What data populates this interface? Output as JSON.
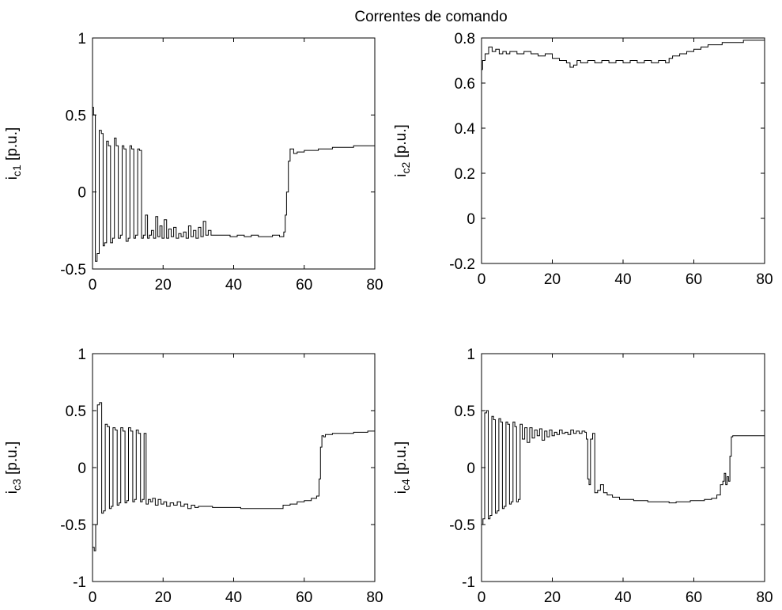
{
  "figure": {
    "title": "Correntes de comando"
  },
  "chart_data": [
    {
      "type": "line",
      "id": "ic1",
      "title": "Correntes de comando",
      "ylabel": {
        "base": "i",
        "sub": "c1",
        "unit": " [p.u.]"
      },
      "xlim": [
        0,
        80
      ],
      "ylim": [
        -0.5,
        1
      ],
      "xticks": [
        0,
        20,
        40,
        60,
        80
      ],
      "yticks": [
        -0.5,
        0,
        0.5,
        1
      ],
      "ytick_labels": [
        "-0.5",
        "0",
        "0.5",
        "1"
      ],
      "series": [
        {
          "color": "#000000",
          "x": [
            0,
            0.3,
            0.8,
            1.3,
            1.9,
            2.5,
            3.0,
            3.4,
            4.0,
            4.5,
            5.1,
            5.7,
            6.2,
            6.7,
            7.3,
            7.9,
            8.4,
            8.9,
            9.5,
            10.1,
            10.6,
            11.1,
            11.7,
            12.2,
            12.8,
            13.3,
            13.9,
            14.4,
            15.0,
            15.6,
            16.1,
            16.7,
            17.3,
            17.9,
            18.5,
            19.1,
            19.7,
            20.3,
            21.0,
            21.6,
            22.3,
            23.0,
            23.7,
            24.4,
            25.1,
            25.8,
            26.5,
            27.2,
            27.9,
            28.6,
            29.3,
            30.0,
            30.7,
            31.4,
            32.1,
            32.8,
            33.6,
            35,
            37,
            39,
            41,
            43,
            45,
            47,
            49,
            51,
            53,
            54.2,
            54.6,
            55.0,
            55.5,
            56,
            57,
            58,
            60,
            62,
            64,
            66,
            68,
            70,
            72,
            74,
            76,
            78,
            79.5,
            80
          ],
          "y": [
            0.55,
            0.5,
            -0.45,
            -0.4,
            0.4,
            0.38,
            -0.35,
            -0.33,
            0.33,
            0.3,
            -0.33,
            -0.3,
            0.35,
            0.3,
            -0.3,
            -0.28,
            0.3,
            0.28,
            -0.32,
            -0.3,
            0.3,
            0.28,
            -0.3,
            -0.28,
            0.28,
            0.27,
            -0.3,
            -0.28,
            -0.15,
            -0.3,
            -0.28,
            -0.25,
            -0.3,
            -0.16,
            -0.29,
            -0.22,
            -0.3,
            -0.18,
            -0.3,
            -0.24,
            -0.29,
            -0.23,
            -0.3,
            -0.27,
            -0.29,
            -0.26,
            -0.3,
            -0.22,
            -0.29,
            -0.25,
            -0.3,
            -0.23,
            -0.29,
            -0.19,
            -0.28,
            -0.25,
            -0.28,
            -0.28,
            -0.28,
            -0.29,
            -0.28,
            -0.29,
            -0.28,
            -0.29,
            -0.29,
            -0.28,
            -0.29,
            -0.26,
            -0.15,
            0.0,
            0.2,
            0.28,
            0.25,
            0.26,
            0.27,
            0.27,
            0.28,
            0.28,
            0.29,
            0.29,
            0.29,
            0.3,
            0.3,
            0.3,
            0.3,
            0.25
          ]
        }
      ]
    },
    {
      "type": "line",
      "id": "ic2",
      "ylabel": {
        "base": "i",
        "sub": "c2",
        "unit": " [p.u.]"
      },
      "xlim": [
        0,
        80
      ],
      "ylim": [
        -0.2,
        0.8
      ],
      "xticks": [
        0,
        20,
        40,
        60,
        80
      ],
      "yticks": [
        -0.2,
        0,
        0.2,
        0.4,
        0.6,
        0.8
      ],
      "ytick_labels": [
        "-0.2",
        "0",
        "0.2",
        "0.4",
        "0.6",
        "0.8"
      ],
      "series": [
        {
          "color": "#000000",
          "x": [
            0,
            0.3,
            1,
            2,
            3,
            4,
            5,
            6,
            7,
            8,
            9,
            10,
            12,
            14,
            16,
            18,
            20,
            22,
            24,
            25,
            26,
            27,
            28,
            30,
            32,
            34,
            36,
            38,
            40,
            42,
            44,
            46,
            48,
            50,
            52,
            53,
            54,
            56,
            58,
            60,
            62,
            64,
            66,
            68,
            70,
            72,
            74,
            76,
            78,
            79.5,
            80
          ],
          "y": [
            0.66,
            0.7,
            0.73,
            0.76,
            0.74,
            0.75,
            0.73,
            0.74,
            0.73,
            0.74,
            0.74,
            0.73,
            0.74,
            0.73,
            0.72,
            0.73,
            0.71,
            0.7,
            0.69,
            0.67,
            0.68,
            0.7,
            0.69,
            0.7,
            0.69,
            0.7,
            0.69,
            0.7,
            0.69,
            0.7,
            0.69,
            0.7,
            0.69,
            0.7,
            0.69,
            0.71,
            0.72,
            0.73,
            0.74,
            0.75,
            0.76,
            0.77,
            0.77,
            0.78,
            0.78,
            0.78,
            0.79,
            0.79,
            0.79,
            0.79,
            0.76
          ]
        }
      ]
    },
    {
      "type": "line",
      "id": "ic3",
      "ylabel": {
        "base": "i",
        "sub": "c3",
        "unit": " [p.u.]"
      },
      "xlim": [
        0,
        80
      ],
      "ylim": [
        -1,
        1
      ],
      "xticks": [
        0,
        20,
        40,
        60,
        80
      ],
      "yticks": [
        -1,
        -0.5,
        0,
        0.5,
        1
      ],
      "ytick_labels": [
        "-1",
        "-0.5",
        "0",
        "0.5",
        "1"
      ],
      "series": [
        {
          "color": "#000000",
          "x": [
            0,
            0.5,
            0.9,
            1.4,
            2.0,
            2.6,
            3.1,
            3.6,
            4.2,
            4.8,
            5.3,
            5.8,
            6.4,
            7.0,
            7.5,
            8.0,
            8.6,
            9.2,
            9.7,
            10.2,
            10.8,
            11.4,
            11.9,
            12.4,
            13.0,
            13.6,
            14.1,
            14.6,
            15.2,
            15.8,
            16.4,
            17.0,
            17.8,
            18.6,
            19.4,
            20.2,
            21.0,
            22,
            23,
            24,
            25,
            26,
            27,
            28,
            29,
            30,
            32,
            34,
            36,
            38,
            40,
            42,
            44,
            46,
            48,
            50,
            52,
            54,
            56,
            58,
            60,
            62,
            63.5,
            64.2,
            64.6,
            65.0,
            65.5,
            66,
            67,
            68,
            70,
            72,
            74,
            76,
            78,
            79.5,
            80
          ],
          "y": [
            -0.7,
            -0.73,
            -0.5,
            0.55,
            0.57,
            -0.4,
            -0.38,
            0.38,
            0.36,
            -0.36,
            -0.34,
            0.35,
            0.33,
            -0.33,
            -0.31,
            0.35,
            0.32,
            -0.31,
            -0.29,
            0.35,
            0.32,
            -0.3,
            -0.28,
            0.33,
            0.3,
            -0.3,
            -0.28,
            0.3,
            -0.32,
            -0.28,
            -0.3,
            -0.27,
            -0.33,
            -0.28,
            -0.32,
            -0.3,
            -0.34,
            -0.31,
            -0.33,
            -0.3,
            -0.34,
            -0.32,
            -0.36,
            -0.33,
            -0.35,
            -0.34,
            -0.34,
            -0.35,
            -0.35,
            -0.35,
            -0.35,
            -0.36,
            -0.36,
            -0.36,
            -0.36,
            -0.36,
            -0.36,
            -0.33,
            -0.32,
            -0.3,
            -0.29,
            -0.27,
            -0.25,
            -0.1,
            0.18,
            0.28,
            0.27,
            0.29,
            0.29,
            0.3,
            0.3,
            0.3,
            0.31,
            0.31,
            0.32,
            0.32,
            0.3
          ]
        }
      ]
    },
    {
      "type": "line",
      "id": "ic4",
      "ylabel": {
        "base": "i",
        "sub": "c4",
        "unit": " [p.u.]"
      },
      "xlim": [
        0,
        80
      ],
      "ylim": [
        -1,
        1
      ],
      "xticks": [
        0,
        20,
        40,
        60,
        80
      ],
      "yticks": [
        -1,
        -0.5,
        0,
        0.5,
        1
      ],
      "ytick_labels": [
        "-1",
        "-0.5",
        "0",
        "0.5",
        "1"
      ],
      "series": [
        {
          "color": "#000000",
          "x": [
            0,
            0.4,
            0.9,
            1.4,
            1.9,
            2.4,
            2.9,
            3.4,
            3.9,
            4.4,
            4.9,
            5.4,
            5.9,
            6.4,
            6.9,
            7.4,
            7.9,
            8.4,
            8.9,
            9.4,
            9.9,
            10.4,
            10.9,
            11.5,
            12.2,
            12.9,
            13.6,
            14.3,
            15.0,
            15.7,
            16.4,
            17.1,
            17.8,
            18.5,
            19.2,
            19.9,
            20.6,
            21.3,
            22.0,
            22.8,
            23.6,
            24.4,
            25.2,
            26.0,
            26.8,
            27.6,
            28.4,
            29.2,
            29.6,
            30.0,
            30.4,
            30.8,
            31.4,
            32.0,
            32.8,
            33.6,
            34.5,
            35.5,
            37,
            39,
            41,
            43,
            45,
            47,
            49,
            51,
            53,
            55,
            57,
            59,
            61,
            63,
            65,
            66.5,
            67.5,
            68.2,
            68.6,
            69.0,
            69.4,
            69.8,
            70.2,
            70.6,
            71,
            72,
            74,
            76,
            78,
            80
          ],
          "y": [
            -0.5,
            -0.45,
            0.48,
            0.5,
            -0.45,
            -0.42,
            0.45,
            0.42,
            -0.4,
            -0.38,
            0.43,
            0.4,
            -0.36,
            -0.34,
            0.4,
            0.38,
            -0.32,
            -0.3,
            0.4,
            0.36,
            -0.3,
            -0.28,
            0.38,
            0.25,
            0.35,
            0.22,
            0.35,
            0.26,
            0.33,
            0.28,
            0.34,
            0.24,
            0.32,
            0.27,
            0.33,
            0.28,
            0.31,
            0.29,
            0.33,
            0.3,
            0.31,
            0.29,
            0.33,
            0.3,
            0.32,
            0.3,
            0.32,
            0.31,
            0.25,
            -0.1,
            -0.15,
            0.25,
            0.3,
            -0.22,
            -0.2,
            -0.15,
            -0.22,
            -0.24,
            -0.26,
            -0.28,
            -0.28,
            -0.29,
            -0.29,
            -0.3,
            -0.3,
            -0.3,
            -0.31,
            -0.3,
            -0.3,
            -0.29,
            -0.29,
            -0.28,
            -0.27,
            -0.24,
            -0.15,
            -0.12,
            -0.05,
            -0.15,
            -0.08,
            -0.12,
            0.1,
            0.27,
            0.28,
            0.28,
            0.28,
            0.28,
            0.28,
            0.28
          ]
        }
      ]
    }
  ]
}
